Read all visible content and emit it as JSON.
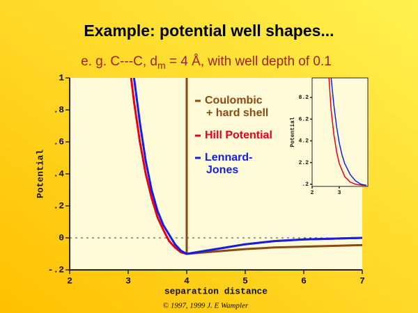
{
  "title": "Example: potential well shapes...",
  "subtitle_parts": [
    "e. g. C---C, d",
    "m",
    " = 4 Å, with well depth of 0.1"
  ],
  "credit": "© 1997, 1999 J. E Wampler",
  "chart_data": [
    {
      "type": "line",
      "xlabel": "separation distance",
      "ylabel": "Potential",
      "xlim": [
        2,
        7
      ],
      "ylim": [
        -0.2,
        1
      ],
      "xticks": [
        2,
        3,
        4,
        5,
        6,
        7
      ],
      "yticks": [
        {
          "value": -0.2,
          "label": "-.2"
        },
        0,
        {
          "value": 0.2,
          "label": ".2"
        },
        {
          "value": 0.4,
          "label": ".4"
        },
        {
          "value": 0.6,
          "label": ".6"
        },
        {
          "value": 0.8,
          "label": ".8"
        },
        1
      ],
      "reference_line": 0,
      "legend": "upper right",
      "series": [
        {
          "name": [
            "Coulombic",
            "+ hard shell"
          ],
          "color": "#8b4a12",
          "x": [
            4,
            4,
            4.5,
            5,
            5.5,
            6,
            6.5,
            7
          ],
          "values": [
            1,
            -0.1,
            -0.085,
            -0.07,
            -0.06,
            -0.055,
            -0.05,
            -0.045
          ]
        },
        {
          "name": [
            "Hill Potential"
          ],
          "color": "#e8001a",
          "x": [
            3.05,
            3.1,
            3.2,
            3.3,
            3.4,
            3.5,
            3.6,
            3.7,
            3.8,
            3.9,
            4,
            4.5,
            5,
            5.5,
            6,
            6.5,
            7
          ],
          "values": [
            1,
            0.85,
            0.6,
            0.4,
            0.25,
            0.13,
            0.05,
            -0.02,
            -0.06,
            -0.09,
            -0.1,
            -0.07,
            -0.04,
            -0.02,
            -0.01,
            -0.005,
            0
          ]
        },
        {
          "name": [
            "Lennard-",
            "Jones"
          ],
          "color": "#1020e8",
          "x": [
            3.1,
            3.2,
            3.3,
            3.4,
            3.5,
            3.6,
            3.7,
            3.8,
            3.9,
            4,
            4.5,
            5,
            5.5,
            6,
            6.5,
            7
          ],
          "values": [
            1,
            0.72,
            0.48,
            0.3,
            0.17,
            0.08,
            0.02,
            -0.04,
            -0.08,
            -0.1,
            -0.07,
            -0.04,
            -0.02,
            -0.01,
            -0.005,
            0
          ]
        }
      ]
    },
    {
      "type": "line",
      "ylabel": "Potential",
      "xlim": [
        2,
        4.05
      ],
      "ylim": [
        0,
        10
      ],
      "xticks": [
        2,
        3
      ],
      "yticks": [
        {
          "value": 0.2,
          "label": ".2"
        },
        2.2,
        4.2,
        6.2,
        8.2
      ],
      "series": [
        {
          "color": "#e8001a",
          "x": [
            2.62,
            2.7,
            2.8,
            2.9,
            3.0,
            3.2,
            3.4,
            3.6,
            3.8,
            4.0
          ],
          "values": [
            10,
            7,
            4.8,
            3.2,
            2.1,
            0.9,
            0.4,
            0.2,
            0.12,
            0.1
          ]
        },
        {
          "color": "#1020e8",
          "x": [
            2.7,
            2.8,
            2.9,
            3.0,
            3.1,
            3.2,
            3.4,
            3.6,
            3.8,
            4.0
          ],
          "values": [
            10,
            7.5,
            5.5,
            4,
            2.9,
            2.1,
            1.1,
            0.5,
            0.2,
            0.1
          ]
        }
      ]
    }
  ]
}
